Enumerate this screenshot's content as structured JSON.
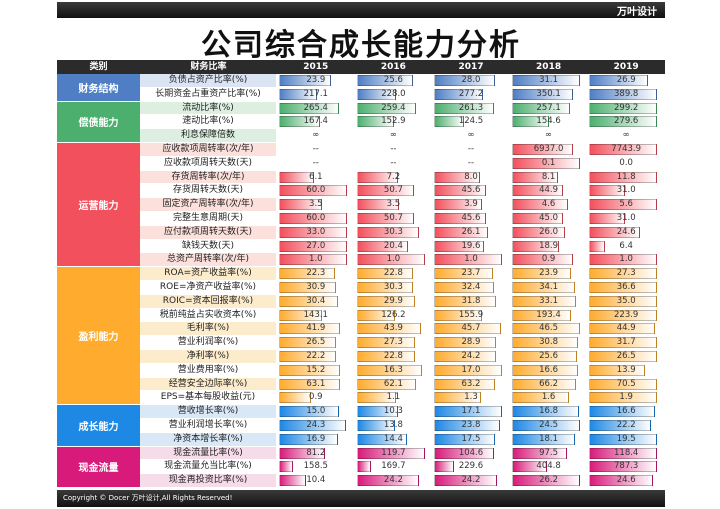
{
  "brand": "万叶设计",
  "title": "公司综合成长能力分析",
  "header": {
    "category": "类别",
    "ratio": "财务比率",
    "years": [
      "2015",
      "2016",
      "2017",
      "2018",
      "2019"
    ]
  },
  "footer": "Copyright © Docer 万叶设计,All Rights Reserved!",
  "groups": [
    {
      "name": "财务结构",
      "color": "#4f7ec4",
      "tint": "#dbe4f3",
      "rows": [
        {
          "label": "负债占资产比率(%)",
          "values": [
            "23.9",
            "25.6",
            "28.0",
            "31.1",
            "26.9"
          ]
        },
        {
          "label": "长期资金占重资产比率(%)",
          "values": [
            "217.1",
            "228.0",
            "277.2",
            "350.1",
            "389.8"
          ]
        }
      ]
    },
    {
      "name": "偿债能力",
      "color": "#4caf6e",
      "tint": "#dcefe0",
      "rows": [
        {
          "label": "流动比率(%)",
          "values": [
            "265.4",
            "259.4",
            "261.3",
            "257.1",
            "299.2"
          ]
        },
        {
          "label": "速动比率(%)",
          "values": [
            "167.4",
            "152.9",
            "124.5",
            "154.6",
            "279.6"
          ]
        },
        {
          "label": "利息保障倍数",
          "values": [
            "∞",
            "∞",
            "∞",
            "∞",
            "∞"
          ]
        }
      ]
    },
    {
      "name": "运营能力",
      "color": "#f2505c",
      "tint": "#fbe0dc",
      "rows": [
        {
          "label": "应收款项周转率(次/年)",
          "values": [
            "--",
            "--",
            "--",
            "6937.0",
            "7743.9"
          ]
        },
        {
          "label": "应收款项周转天数(天)",
          "values": [
            "--",
            "--",
            "--",
            "0.1",
            "0.0"
          ]
        },
        {
          "label": "存货周转率(次/年)",
          "values": [
            "6.1",
            "7.2",
            "8.0",
            "8.1",
            "11.8"
          ]
        },
        {
          "label": "存货周转天数(天)",
          "values": [
            "60.0",
            "50.7",
            "45.6",
            "44.9",
            "31.0"
          ]
        },
        {
          "label": "固定资产周转率(次/年)",
          "values": [
            "3.5",
            "3.5",
            "3.9",
            "4.6",
            "5.6"
          ]
        },
        {
          "label": "完整生意周期(天)",
          "values": [
            "60.0",
            "50.7",
            "45.6",
            "45.0",
            "31.0"
          ]
        },
        {
          "label": "应付款项周转天数(天)",
          "values": [
            "33.0",
            "30.3",
            "26.1",
            "26.0",
            "24.6"
          ]
        },
        {
          "label": "缺钱天数(天)",
          "values": [
            "27.0",
            "20.4",
            "19.6",
            "18.9",
            "6.4"
          ]
        },
        {
          "label": "总资产周转率(次/年)",
          "values": [
            "1.0",
            "1.0",
            "1.0",
            "0.9",
            "1.0"
          ]
        }
      ]
    },
    {
      "name": "盈利能力",
      "color": "#ffab2e",
      "tint": "#fdeccc",
      "rows": [
        {
          "label": "ROA=资产收益率(%)",
          "values": [
            "22.3",
            "22.8",
            "23.7",
            "23.9",
            "27.3"
          ]
        },
        {
          "label": "ROE=净资产收益率(%)",
          "values": [
            "30.9",
            "30.3",
            "32.4",
            "34.1",
            "36.6"
          ]
        },
        {
          "label": "ROIC=资本回报率(%)",
          "values": [
            "30.4",
            "29.9",
            "31.8",
            "33.1",
            "35.0"
          ]
        },
        {
          "label": "税前纯益占实收资本(%)",
          "values": [
            "143.1",
            "126.2",
            "155.9",
            "193.4",
            "223.9"
          ]
        },
        {
          "label": "毛利率(%)",
          "values": [
            "41.9",
            "43.9",
            "45.7",
            "46.5",
            "44.9"
          ]
        },
        {
          "label": "营业利润率(%)",
          "values": [
            "26.5",
            "27.3",
            "28.9",
            "30.8",
            "31.7"
          ]
        },
        {
          "label": "净利率(%)",
          "values": [
            "22.2",
            "22.8",
            "24.2",
            "25.6",
            "26.5"
          ]
        },
        {
          "label": "营业费用率(%)",
          "values": [
            "15.2",
            "16.3",
            "17.0",
            "16.6",
            "13.9"
          ]
        },
        {
          "label": "经营安全边际率(%)",
          "values": [
            "63.1",
            "62.1",
            "63.2",
            "66.2",
            "70.5"
          ]
        },
        {
          "label": "EPS=基本每股收益(元)",
          "values": [
            "0.9",
            "1.1",
            "1.3",
            "1.6",
            "1.9"
          ]
        }
      ]
    },
    {
      "name": "成长能力",
      "color": "#1e88e5",
      "tint": "#d9e8f7",
      "rows": [
        {
          "label": "营收增长率(%)",
          "values": [
            "15.0",
            "10.3",
            "17.1",
            "16.8",
            "16.6"
          ]
        },
        {
          "label": "营业利润增长率(%)",
          "values": [
            "24.3",
            "13.8",
            "23.8",
            "24.5",
            "22.2"
          ]
        },
        {
          "label": "净资本增长率(%)",
          "values": [
            "16.9",
            "14.4",
            "17.5",
            "18.1",
            "19.5"
          ]
        }
      ]
    },
    {
      "name": "现金流量",
      "color": "#d81b7a",
      "tint": "#f6dbe9",
      "rows": [
        {
          "label": "现金流量比率(%)",
          "values": [
            "81.2",
            "119.7",
            "104.6",
            "97.5",
            "118.4"
          ]
        },
        {
          "label": "现金流量允当比率(%)",
          "values": [
            "158.5",
            "169.7",
            "229.6",
            "404.8",
            "787.3"
          ]
        },
        {
          "label": "现金再投资比率(%)",
          "values": [
            "10.4",
            "24.2",
            "24.2",
            "26.2",
            "24.6"
          ]
        }
      ]
    }
  ]
}
